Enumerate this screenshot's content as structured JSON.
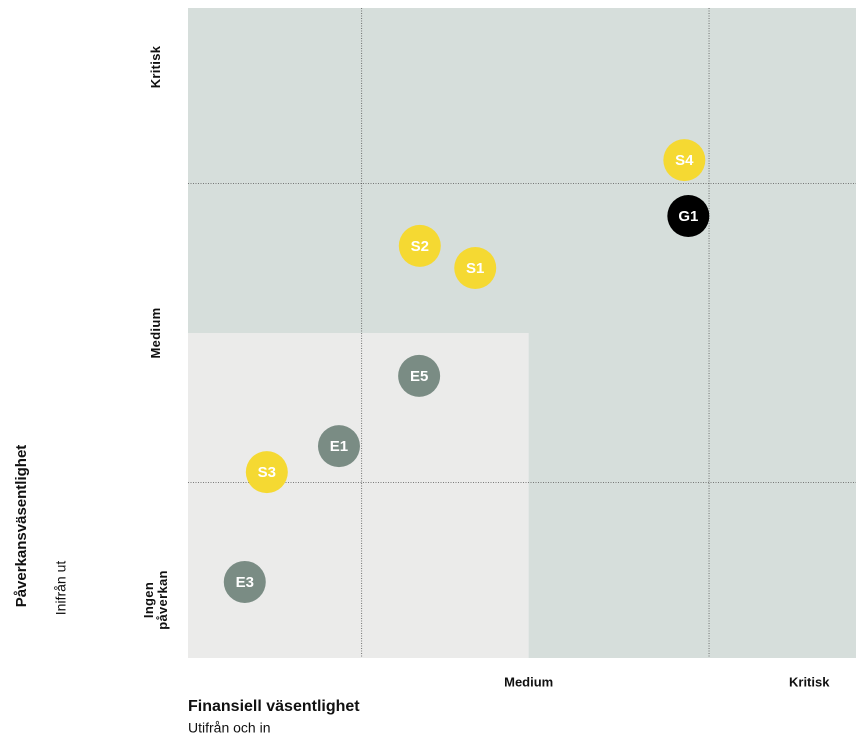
{
  "chart_data": {
    "type": "scatter",
    "x_label": "Finansiell väsentlighet",
    "x_sublabel": "Utifrån och in",
    "y_label": "Påverkansväsentlighet",
    "y_sublabel": "Inifrån ut",
    "xlim": [
      0,
      100
    ],
    "ylim": [
      0,
      100
    ],
    "xticks": [
      {
        "value": 51,
        "label": "Medium"
      },
      {
        "value": 93,
        "label": "Kritisk"
      }
    ],
    "yticks": [
      {
        "value": 9,
        "label": "Ingen påverkan"
      },
      {
        "value": 50,
        "label": "Medium"
      },
      {
        "value": 91,
        "label": "Kritisk"
      }
    ],
    "xgrid": [
      26,
      78
    ],
    "ygrid": [
      27,
      73
    ],
    "quadrant_colors": {
      "low": "#ebebea",
      "high": "#d6dedb"
    },
    "points": [
      {
        "label": "S4",
        "x": 74.3,
        "y": 76.6,
        "color": "#f5d932"
      },
      {
        "label": "G1",
        "x": 74.9,
        "y": 68.0,
        "color": "#000000"
      },
      {
        "label": "S2",
        "x": 34.7,
        "y": 63.4,
        "color": "#f5d932"
      },
      {
        "label": "S1",
        "x": 43.0,
        "y": 60.0,
        "color": "#f5d932"
      },
      {
        "label": "E5",
        "x": 34.6,
        "y": 43.4,
        "color": "#7a8c84"
      },
      {
        "label": "E1",
        "x": 22.6,
        "y": 32.6,
        "color": "#7a8c84"
      },
      {
        "label": "S3",
        "x": 11.8,
        "y": 28.6,
        "color": "#f5d932"
      },
      {
        "label": "E3",
        "x": 8.5,
        "y": 11.7,
        "color": "#7a8c84"
      }
    ]
  }
}
